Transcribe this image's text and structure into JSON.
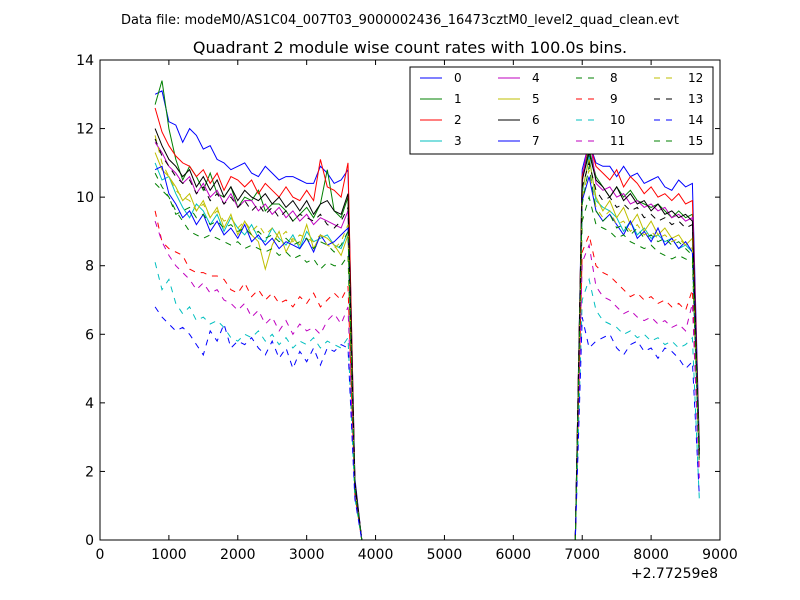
{
  "figure": {
    "suptitle": "Data file: modeM0/AS1C04_007T03_9000002436_16473cztM0_level2_quad_clean.evt"
  },
  "chart_data": {
    "type": "line",
    "title": "Quadrant 2 module wise count rates with 100.0s bins.",
    "xlabel": "",
    "ylabel": "",
    "x_offset_label": "+2.77259e8",
    "xlim": [
      0,
      9000
    ],
    "ylim": [
      0,
      14
    ],
    "xticks": [
      0,
      1000,
      2000,
      3000,
      4000,
      5000,
      6000,
      7000,
      8000,
      9000
    ],
    "yticks": [
      0,
      2,
      4,
      6,
      8,
      10,
      12,
      14
    ],
    "legend_location": "upper-right",
    "legend_columns": 4,
    "x": [
      800,
      900,
      1000,
      1100,
      1200,
      1300,
      1400,
      1500,
      1600,
      1700,
      1800,
      1900,
      2000,
      2100,
      2200,
      2300,
      2400,
      2500,
      2600,
      2700,
      2800,
      2900,
      3000,
      3100,
      3200,
      3300,
      3400,
      3500,
      3600,
      3700,
      3800,
      3900,
      4000,
      4500,
      5000,
      5500,
      6000,
      6500,
      6900,
      7000,
      7100,
      7200,
      7300,
      7400,
      7500,
      7600,
      7700,
      7800,
      7900,
      8000,
      8100,
      8200,
      8300,
      8400,
      8500,
      8600,
      8700
    ],
    "series": [
      {
        "name": "0",
        "color": "#0000ff",
        "dash": "solid",
        "values": [
          13.0,
          13.1,
          12.2,
          12.1,
          11.6,
          12.0,
          11.8,
          11.4,
          11.5,
          11.1,
          11.0,
          10.8,
          10.9,
          11.0,
          10.7,
          10.6,
          10.9,
          10.7,
          10.5,
          10.6,
          10.6,
          10.5,
          10.4,
          10.4,
          10.9,
          10.7,
          10.4,
          10.5,
          10.8,
          1.8,
          0.0,
          0.0,
          0.0,
          0.0,
          0.0,
          0.0,
          0.0,
          0.0,
          0.0,
          10.8,
          11.6,
          11.0,
          10.9,
          10.9,
          10.6,
          10.9,
          10.6,
          10.7,
          10.4,
          10.5,
          10.6,
          10.3,
          10.2,
          10.5,
          10.3,
          10.4,
          2.8
        ]
      },
      {
        "name": "1",
        "color": "#008000",
        "dash": "solid",
        "values": [
          12.7,
          13.4,
          12.0,
          11.1,
          10.5,
          10.9,
          10.6,
          10.2,
          10.7,
          10.1,
          10.0,
          10.3,
          9.7,
          10.0,
          9.9,
          10.2,
          9.6,
          9.8,
          9.8,
          9.6,
          9.3,
          9.5,
          9.7,
          9.4,
          9.8,
          10.8,
          9.6,
          9.4,
          10.0,
          1.6,
          0.0,
          0.0,
          0.0,
          0.0,
          0.0,
          0.0,
          0.0,
          0.0,
          0.0,
          10.6,
          11.4,
          10.6,
          10.3,
          10.0,
          10.3,
          10.0,
          10.2,
          9.9,
          9.8,
          9.7,
          9.8,
          9.6,
          9.4,
          9.6,
          9.4,
          9.5,
          2.6
        ]
      },
      {
        "name": "2",
        "color": "#ff0000",
        "dash": "solid",
        "values": [
          12.6,
          11.9,
          11.5,
          11.2,
          11.0,
          10.9,
          10.6,
          10.8,
          10.4,
          10.7,
          10.2,
          10.6,
          10.5,
          10.3,
          10.5,
          10.1,
          10.4,
          10.2,
          10.0,
          10.3,
          10.0,
          9.9,
          10.2,
          9.9,
          11.1,
          10.3,
          10.2,
          10.0,
          11.0,
          1.7,
          0.0,
          0.0,
          0.0,
          0.0,
          0.0,
          0.0,
          0.0,
          0.0,
          0.0,
          10.6,
          11.6,
          10.9,
          10.7,
          10.5,
          10.8,
          10.3,
          10.6,
          10.4,
          10.1,
          10.3,
          10.0,
          10.1,
          9.9,
          10.1,
          9.8,
          9.9,
          2.7
        ]
      },
      {
        "name": "3",
        "color": "#00bfbf",
        "dash": "solid",
        "values": [
          11.0,
          10.5,
          10.6,
          10.1,
          9.7,
          9.4,
          9.8,
          9.6,
          9.2,
          9.5,
          9.0,
          9.4,
          9.1,
          8.9,
          9.2,
          8.8,
          8.7,
          9.1,
          8.8,
          8.6,
          8.9,
          8.5,
          9.0,
          8.7,
          8.8,
          8.9,
          8.6,
          8.5,
          9.0,
          1.5,
          0.0,
          0.0,
          0.0,
          0.0,
          0.0,
          0.0,
          0.0,
          0.0,
          0.0,
          10.1,
          11.2,
          9.9,
          9.7,
          9.6,
          9.4,
          9.0,
          9.3,
          8.9,
          9.1,
          8.8,
          8.9,
          8.7,
          8.8,
          8.5,
          8.6,
          8.4,
          2.4
        ]
      },
      {
        "name": "4",
        "color": "#bf00bf",
        "dash": "solid",
        "values": [
          11.6,
          11.3,
          10.9,
          10.7,
          10.4,
          10.6,
          10.1,
          10.4,
          10.0,
          10.2,
          9.8,
          10.1,
          9.7,
          9.9,
          9.9,
          9.6,
          9.8,
          9.5,
          9.7,
          9.4,
          9.6,
          9.3,
          9.5,
          9.2,
          9.4,
          9.3,
          9.2,
          9.1,
          9.6,
          1.6,
          0.0,
          0.0,
          0.0,
          0.0,
          0.0,
          0.0,
          0.0,
          0.0,
          0.0,
          10.4,
          11.9,
          10.4,
          10.2,
          10.3,
          10.0,
          10.1,
          9.8,
          9.9,
          9.7,
          9.8,
          9.6,
          9.7,
          9.4,
          9.5,
          9.3,
          9.4,
          2.5
        ]
      },
      {
        "name": "5",
        "color": "#bfbf00",
        "dash": "solid",
        "values": [
          11.3,
          10.8,
          10.6,
          10.3,
          9.9,
          10.1,
          9.6,
          9.9,
          9.4,
          9.7,
          9.1,
          9.5,
          8.9,
          9.3,
          8.9,
          8.7,
          7.9,
          8.6,
          9.0,
          8.4,
          8.8,
          8.6,
          9.2,
          8.5,
          8.9,
          8.8,
          8.6,
          8.3,
          8.9,
          1.5,
          0.0,
          0.0,
          0.0,
          0.0,
          0.0,
          0.0,
          0.0,
          0.0,
          0.0,
          10.2,
          11.1,
          10.0,
          9.6,
          9.9,
          9.4,
          9.7,
          9.2,
          9.5,
          9.0,
          9.3,
          8.9,
          9.1,
          8.8,
          8.9,
          8.6,
          8.8,
          2.5
        ]
      },
      {
        "name": "6",
        "color": "#000000",
        "dash": "solid",
        "values": [
          12.0,
          11.5,
          11.1,
          10.9,
          10.6,
          10.8,
          10.3,
          10.6,
          10.2,
          10.5,
          10.0,
          10.3,
          9.9,
          10.2,
          10.0,
          9.9,
          10.1,
          9.8,
          10.0,
          9.7,
          9.9,
          9.6,
          9.9,
          9.5,
          9.8,
          9.9,
          9.6,
          9.5,
          10.1,
          1.7,
          0.0,
          0.0,
          0.0,
          0.0,
          0.0,
          0.0,
          0.0,
          0.0,
          0.0,
          10.5,
          11.3,
          10.5,
          10.3,
          10.0,
          10.3,
          9.9,
          10.1,
          9.8,
          9.9,
          9.6,
          9.8,
          9.5,
          9.6,
          9.4,
          9.5,
          9.3,
          2.6
        ]
      },
      {
        "name": "7",
        "color": "#0000ff",
        "dash": "solid",
        "values": [
          10.8,
          10.9,
          10.1,
          9.8,
          9.4,
          9.6,
          9.2,
          9.5,
          9.0,
          9.3,
          8.9,
          9.1,
          8.8,
          9.2,
          8.7,
          8.9,
          8.6,
          8.8,
          8.5,
          8.7,
          8.6,
          8.5,
          8.8,
          8.4,
          8.9,
          8.6,
          8.7,
          8.9,
          9.1,
          1.5,
          0.0,
          0.0,
          0.0,
          0.0,
          0.0,
          0.0,
          0.0,
          0.0,
          0.0,
          9.9,
          10.6,
          9.6,
          9.3,
          9.5,
          9.2,
          8.9,
          9.3,
          8.8,
          9.0,
          8.7,
          9.1,
          8.6,
          8.8,
          8.5,
          8.7,
          8.4,
          2.4
        ]
      },
      {
        "name": "8",
        "color": "#008000",
        "dash": "dashed",
        "values": [
          10.7,
          10.3,
          10.0,
          9.6,
          9.3,
          9.0,
          8.9,
          8.8,
          8.9,
          8.8,
          8.7,
          8.6,
          8.7,
          8.5,
          8.6,
          8.5,
          8.4,
          8.5,
          8.3,
          8.4,
          8.2,
          8.3,
          8.1,
          8.2,
          7.9,
          8.1,
          8.0,
          8.0,
          8.3,
          1.4,
          0.0,
          0.0,
          0.0,
          0.0,
          0.0,
          0.0,
          0.0,
          0.0,
          0.0,
          9.3,
          10.0,
          9.2,
          9.1,
          9.0,
          8.8,
          8.9,
          8.7,
          8.6,
          8.5,
          8.6,
          8.4,
          8.3,
          8.2,
          8.3,
          8.2,
          8.1,
          2.2
        ]
      },
      {
        "name": "9",
        "color": "#ff0000",
        "dash": "dashed",
        "values": [
          9.6,
          8.7,
          8.5,
          8.4,
          8.3,
          7.9,
          7.8,
          7.8,
          7.7,
          7.7,
          7.6,
          7.3,
          7.2,
          7.5,
          7.1,
          7.3,
          7.0,
          7.2,
          6.9,
          7.0,
          6.8,
          7.1,
          6.9,
          7.2,
          6.8,
          7.0,
          7.2,
          7.0,
          7.4,
          1.3,
          0.0,
          0.0,
          0.0,
          0.0,
          0.0,
          0.0,
          0.0,
          0.0,
          0.0,
          8.4,
          8.9,
          8.0,
          7.8,
          7.7,
          7.5,
          7.3,
          7.1,
          7.2,
          7.0,
          7.1,
          6.9,
          7.0,
          6.8,
          6.9,
          6.7,
          7.3,
          2.0
        ]
      },
      {
        "name": "10",
        "color": "#00bfbf",
        "dash": "dashed",
        "values": [
          8.1,
          7.3,
          7.6,
          6.9,
          6.6,
          6.8,
          6.4,
          6.5,
          6.3,
          6.4,
          6.2,
          5.9,
          5.8,
          6.0,
          5.9,
          6.1,
          5.8,
          6.0,
          5.7,
          5.9,
          5.6,
          5.8,
          5.7,
          5.9,
          5.6,
          5.8,
          5.7,
          5.6,
          5.9,
          1.2,
          0.0,
          0.0,
          0.0,
          0.0,
          0.0,
          0.0,
          0.0,
          0.0,
          0.0,
          7.0,
          7.6,
          6.7,
          6.4,
          6.3,
          6.2,
          6.0,
          6.1,
          5.9,
          6.0,
          5.8,
          5.9,
          5.7,
          5.8,
          5.6,
          5.7,
          5.9,
          1.2
        ]
      },
      {
        "name": "11",
        "color": "#bf00bf",
        "dash": "dashed",
        "values": [
          9.3,
          8.7,
          8.3,
          8.0,
          7.8,
          7.6,
          7.3,
          7.5,
          7.2,
          7.3,
          7.0,
          6.9,
          6.7,
          6.9,
          6.5,
          6.7,
          6.3,
          6.5,
          6.1,
          6.4,
          6.0,
          6.3,
          6.1,
          6.2,
          6.0,
          6.4,
          6.6,
          6.3,
          6.8,
          1.3,
          0.0,
          0.0,
          0.0,
          0.0,
          0.0,
          0.0,
          0.0,
          0.0,
          0.0,
          8.1,
          8.6,
          7.4,
          7.1,
          7.0,
          6.8,
          6.6,
          6.7,
          6.5,
          6.4,
          6.5,
          6.3,
          6.4,
          6.2,
          6.3,
          6.1,
          6.9,
          1.8
        ]
      },
      {
        "name": "12",
        "color": "#bfbf00",
        "dash": "dashed",
        "values": [
          11.8,
          11.0,
          10.6,
          10.2,
          10.0,
          9.9,
          9.6,
          9.8,
          9.4,
          9.6,
          9.3,
          9.4,
          9.1,
          9.3,
          9.0,
          9.2,
          8.9,
          9.1,
          8.8,
          9.0,
          8.7,
          8.9,
          8.8,
          8.7,
          8.9,
          8.6,
          8.5,
          8.7,
          9.2,
          1.5,
          0.0,
          0.0,
          0.0,
          0.0,
          0.0,
          0.0,
          0.0,
          0.0,
          0.0,
          10.0,
          10.8,
          9.7,
          9.4,
          9.6,
          9.2,
          9.3,
          9.0,
          9.2,
          8.9,
          9.0,
          8.8,
          8.9,
          8.7,
          8.8,
          8.6,
          8.5,
          2.3
        ]
      },
      {
        "name": "13",
        "color": "#000000",
        "dash": "dashed",
        "values": [
          11.7,
          11.2,
          10.9,
          10.6,
          10.4,
          10.5,
          10.1,
          10.3,
          9.9,
          10.1,
          9.8,
          10.0,
          9.7,
          9.9,
          9.6,
          9.8,
          9.5,
          9.7,
          9.4,
          9.6,
          9.3,
          9.5,
          9.4,
          9.3,
          9.5,
          9.2,
          9.1,
          9.3,
          9.7,
          1.6,
          0.0,
          0.0,
          0.0,
          0.0,
          0.0,
          0.0,
          0.0,
          0.0,
          0.0,
          10.3,
          11.0,
          10.2,
          9.9,
          10.0,
          9.7,
          9.8,
          9.6,
          9.7,
          9.4,
          9.5,
          9.3,
          9.4,
          9.2,
          9.3,
          9.1,
          9.2,
          2.5
        ]
      },
      {
        "name": "14",
        "color": "#0000ff",
        "dash": "dashed",
        "values": [
          6.8,
          6.5,
          6.3,
          6.1,
          6.2,
          6.0,
          5.7,
          5.4,
          6.1,
          5.8,
          6.3,
          5.6,
          5.8,
          5.7,
          5.9,
          5.6,
          5.4,
          5.8,
          5.3,
          5.6,
          5.0,
          5.5,
          5.2,
          5.6,
          5.1,
          5.6,
          5.5,
          5.7,
          5.6,
          1.2,
          0.0,
          0.0,
          0.0,
          0.0,
          0.0,
          0.0,
          0.0,
          0.0,
          0.0,
          6.5,
          5.6,
          5.8,
          5.9,
          6.0,
          5.6,
          5.4,
          5.7,
          5.8,
          5.5,
          5.6,
          5.3,
          5.6,
          5.5,
          5.3,
          5.0,
          5.2,
          1.3
        ]
      },
      {
        "name": "15",
        "color": "#008000",
        "dash": "dashed",
        "values": [
          10.4,
          10.2,
          10.0,
          9.5,
          9.6,
          9.7,
          9.4,
          9.5,
          9.2,
          9.3,
          9.1,
          9.2,
          9.0,
          9.1,
          8.9,
          9.0,
          8.8,
          8.9,
          8.7,
          8.8,
          8.6,
          8.7,
          8.8,
          8.5,
          8.7,
          8.6,
          8.4,
          8.6,
          9.0,
          1.5,
          0.0,
          0.0,
          0.0,
          0.0,
          0.0,
          0.0,
          0.0,
          0.0,
          0.0,
          9.8,
          10.9,
          9.6,
          9.3,
          9.5,
          9.1,
          9.2,
          8.9,
          9.1,
          8.8,
          8.9,
          8.7,
          8.8,
          8.6,
          8.7,
          8.5,
          8.3,
          2.3
        ]
      }
    ]
  }
}
